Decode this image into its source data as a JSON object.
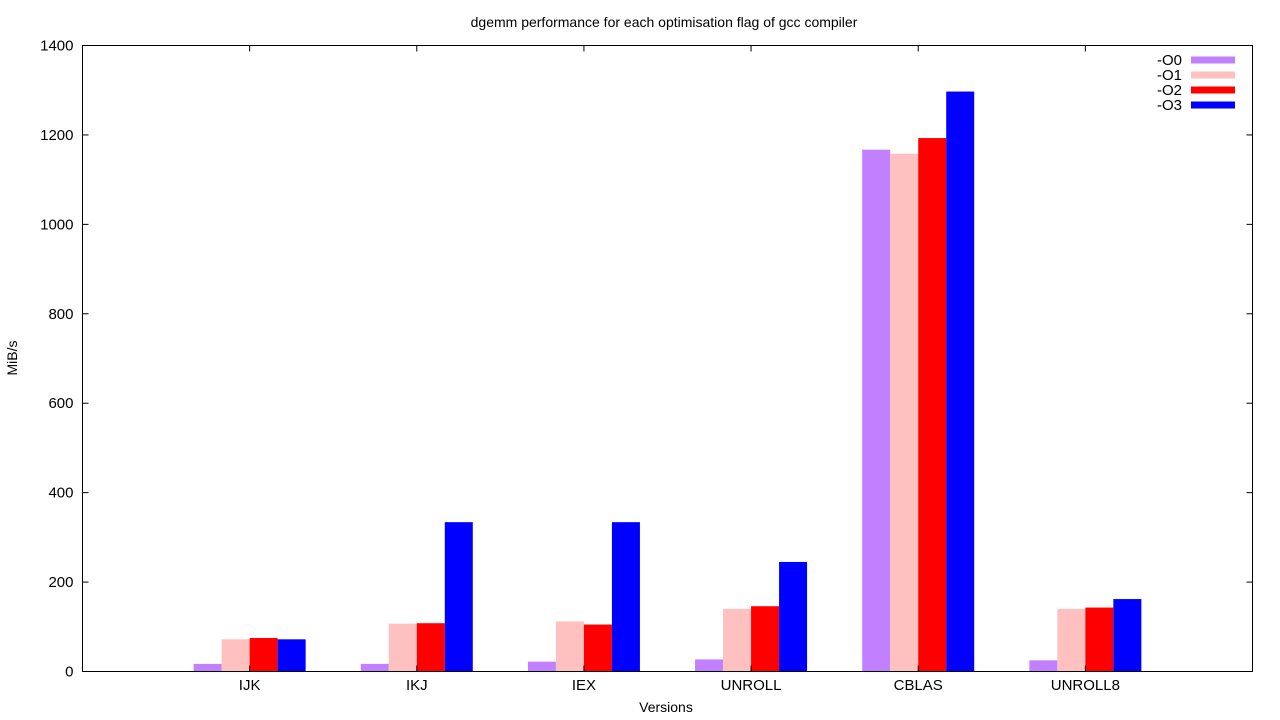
{
  "chart_data": {
    "type": "bar",
    "title": "dgemm performance for each optimisation flag of gcc compiler",
    "xlabel": "Versions",
    "ylabel": "MiB/s",
    "categories": [
      "IJK",
      "IKJ",
      "IEX",
      "UNROLL",
      "CBLAS",
      "UNROLL8"
    ],
    "ylim": [
      0,
      1400
    ],
    "yticks": [
      "0",
      "200",
      "400",
      "600",
      "800",
      "1000",
      "1200",
      "1400"
    ],
    "legend_position": "top-right",
    "grid": false,
    "series": [
      {
        "name": "-O0",
        "color": "#c080ff",
        "values": [
          17,
          17,
          22,
          27,
          1167,
          25
        ]
      },
      {
        "name": "-O1",
        "color": "#ffc0c0",
        "values": [
          72,
          107,
          112,
          140,
          1158,
          140
        ]
      },
      {
        "name": "-O2",
        "color": "#ff0000",
        "values": [
          75,
          108,
          105,
          146,
          1193,
          143
        ]
      },
      {
        "name": "-O3",
        "color": "#0000ff",
        "values": [
          72,
          334,
          334,
          245,
          1297,
          162
        ]
      }
    ]
  }
}
